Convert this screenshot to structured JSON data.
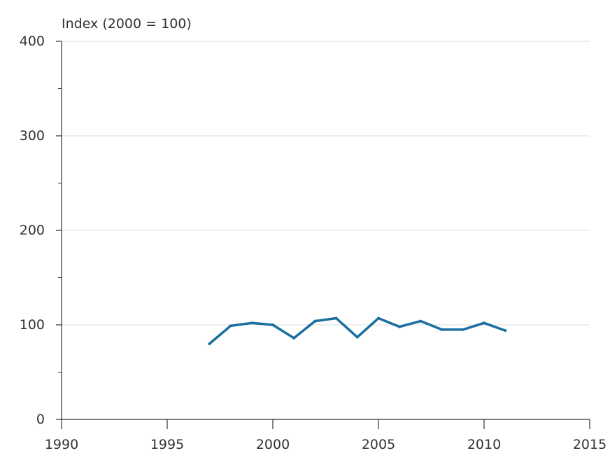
{
  "chart_data": {
    "type": "line",
    "title": "",
    "ylabel": "Index (2000 = 100)",
    "xlabel": "",
    "xlim": [
      1990,
      2015
    ],
    "ylim": [
      0,
      400
    ],
    "x_ticks": [
      1990,
      1995,
      2000,
      2005,
      2010,
      2015
    ],
    "x_tick_labels": [
      "1990",
      "1995",
      "2000",
      "2005",
      "2010",
      "2015"
    ],
    "y_ticks": [
      0,
      100,
      200,
      300,
      400
    ],
    "y_tick_labels": [
      "0",
      "100",
      "200",
      "300",
      "400"
    ],
    "y_minor_ticks": [
      50,
      150,
      250,
      350
    ],
    "grid": "horizontal",
    "legend": "none",
    "series": [
      {
        "color": "#1a6fa0",
        "x": [
          1997,
          1998,
          1999,
          2000,
          2001,
          2002,
          2003,
          2004,
          2005,
          2006,
          2007,
          2008,
          2009,
          2010,
          2011
        ],
        "y": [
          80,
          99,
          102,
          100,
          86,
          104,
          107,
          87,
          107,
          98,
          104,
          95,
          95,
          102,
          94
        ]
      }
    ]
  }
}
